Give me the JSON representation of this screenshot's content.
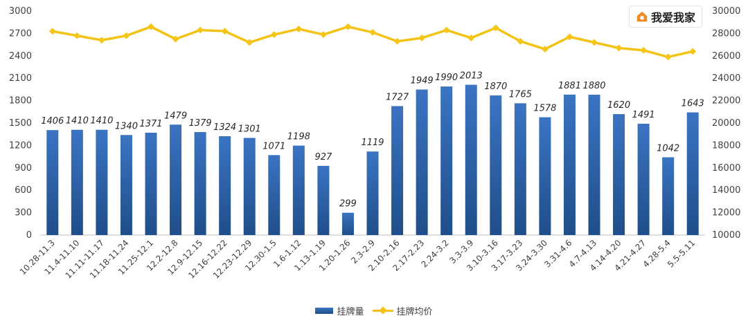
{
  "brand": {
    "name": "我爱我家",
    "accent": "#f08a24"
  },
  "colors": {
    "bar_top": "#3b74c2",
    "bar_bottom": "#1f4e8a",
    "line": "#f2c314",
    "marker": "#f5c518"
  },
  "chart_data": {
    "type": "bar",
    "categories": [
      "10.28-11.3",
      "11.4-11.10",
      "11.11-11.17",
      "11.18-11.24",
      "11.25-12.1",
      "12.2-12.8",
      "12.9-12.15",
      "12.16-12.22",
      "12.23-12.29",
      "12.30-1.5",
      "1.6-1.12",
      "1.13-1.19",
      "1.20-1.26",
      "2.3-2.9",
      "2.10-2.16",
      "2.17-2.23",
      "2.24-3.2",
      "3.3-3.9",
      "3.10-3.16",
      "3.17-3.23",
      "3.24-3.30",
      "3.31-4.6",
      "4.7-4.13",
      "4.14-4.20",
      "4.21-4.27",
      "4.28-5.4",
      "5.5-5.11"
    ],
    "series": [
      {
        "name": "挂牌量",
        "type": "bar",
        "axis": "left",
        "values": [
          1406,
          1410,
          1410,
          1340,
          1371,
          1479,
          1379,
          1324,
          1301,
          1071,
          1198,
          927,
          299,
          1119,
          1727,
          1949,
          1990,
          2013,
          1870,
          1765,
          1578,
          1881,
          1880,
          1620,
          1491,
          1042,
          1643
        ]
      },
      {
        "name": "挂牌均价",
        "type": "line",
        "axis": "right",
        "values": [
          28200,
          27800,
          27400,
          27800,
          28600,
          27500,
          28300,
          28200,
          27200,
          27900,
          28400,
          27900,
          28600,
          28100,
          27300,
          27600,
          28300,
          27600,
          28500,
          27300,
          26600,
          27700,
          27200,
          26700,
          26500,
          25900,
          26400
        ]
      }
    ],
    "y_left": {
      "min": 0,
      "max": 3000,
      "ticks": [
        0,
        300,
        600,
        900,
        1200,
        1500,
        1800,
        2100,
        2400,
        2700,
        3000
      ]
    },
    "y_right": {
      "min": 10000,
      "max": 30000,
      "ticks": [
        10000,
        12000,
        14000,
        16000,
        18000,
        20000,
        22000,
        24000,
        26000,
        28000,
        30000
      ]
    },
    "legend": {
      "position": "bottom",
      "items": [
        "挂牌量",
        "挂牌均价"
      ]
    },
    "grid": false
  }
}
